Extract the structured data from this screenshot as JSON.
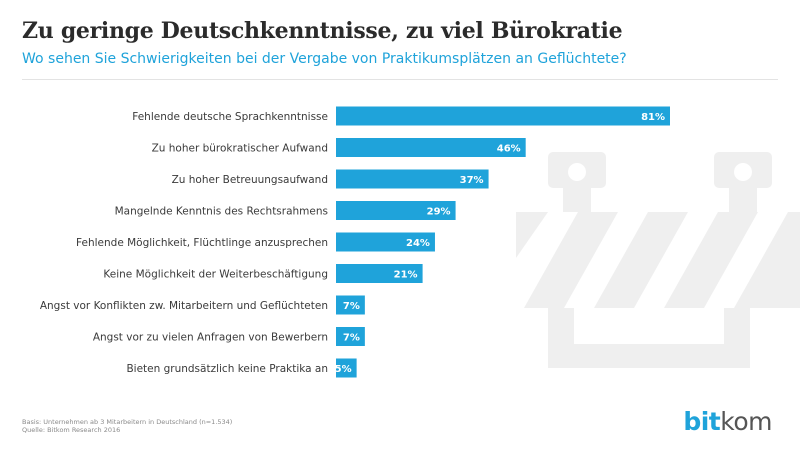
{
  "header": {
    "title": "Zu geringe Deutschkenntnisse, zu viel Bürokratie",
    "subtitle": "Wo sehen Sie Schwierigkeiten bei der Vergabe von Praktikumsplätzen an Geflüchtete?"
  },
  "chart_data": {
    "type": "bar",
    "orientation": "horizontal",
    "categories": [
      "Fehlende deutsche Sprachkenntnisse",
      "Zu hoher bürokratischer Aufwand",
      "Zu hoher Betreuungsaufwand",
      "Mangelnde Kenntnis des Rechtsrahmens",
      "Fehlende Möglichkeit, Flüchtlinge anzusprechen",
      "Keine Möglichkeit der Weiterbeschäftigung",
      "Angst vor Konflikten zw. Mitarbeitern und Geflüchteten",
      "Angst vor zu vielen Anfragen von Bewerbern",
      "Bieten grundsätzlich keine Praktika an"
    ],
    "values": [
      81,
      46,
      37,
      29,
      24,
      21,
      7,
      7,
      5
    ],
    "value_labels": [
      "81%",
      "46%",
      "37%",
      "29%",
      "24%",
      "21%",
      "7%",
      "7%",
      "5%"
    ],
    "unit": "%",
    "xlim": [
      0,
      100
    ],
    "grid": false,
    "bar_color": "#1fa3da",
    "label_color": "#ffffff"
  },
  "footer": {
    "basis": "Basis: Unternehmen ab 3 Mitarbeitern in Deutschland (n=1.534)",
    "source": "Quelle: Bitkom Research 2016"
  },
  "logo": {
    "bit": "bit",
    "kom": "kom"
  },
  "colors": {
    "accent": "#1fa3da",
    "title": "#2b2b2b",
    "text": "#3a3a3a",
    "illustration": "#efefef"
  },
  "icons": {
    "illustration": "road-barrier-icon"
  }
}
